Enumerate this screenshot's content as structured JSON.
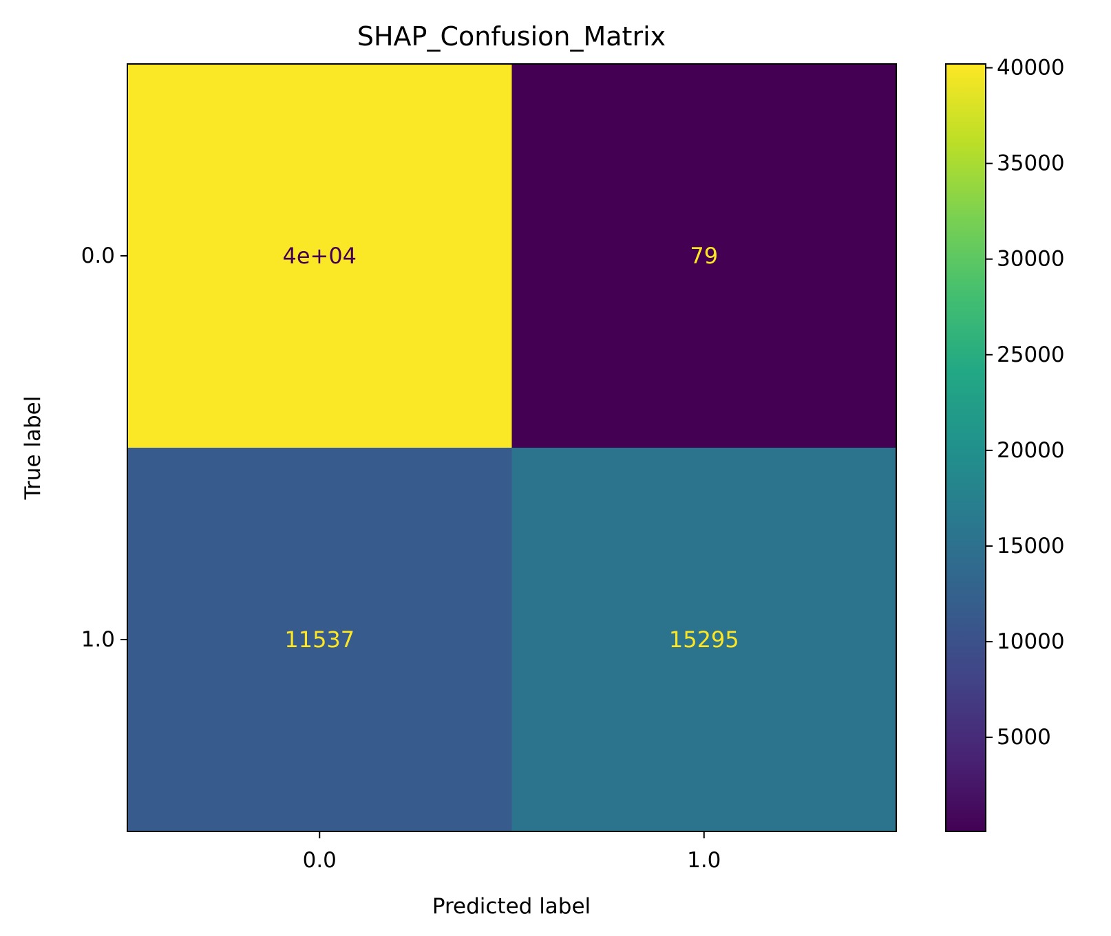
{
  "chart_data": {
    "type": "heatmap",
    "title": "SHAP_Confusion_Matrix",
    "xlabel": "Predicted label",
    "ylabel": "True label",
    "x_categories": [
      "0.0",
      "1.0"
    ],
    "y_categories": [
      "0.0",
      "1.0"
    ],
    "values": [
      [
        40000,
        79
      ],
      [
        11537,
        15295
      ]
    ],
    "cell_labels": [
      [
        "4e+04",
        "79"
      ],
      [
        "11537",
        "15295"
      ]
    ],
    "colormap": "viridis",
    "colorbar": {
      "range": [
        79,
        40200
      ],
      "ticks": [
        5000,
        10000,
        15000,
        20000,
        25000,
        30000,
        35000,
        40000
      ],
      "tick_labels": [
        "5000",
        "10000",
        "15000",
        "20000",
        "25000",
        "30000",
        "35000",
        "40000"
      ]
    },
    "grid": false
  }
}
